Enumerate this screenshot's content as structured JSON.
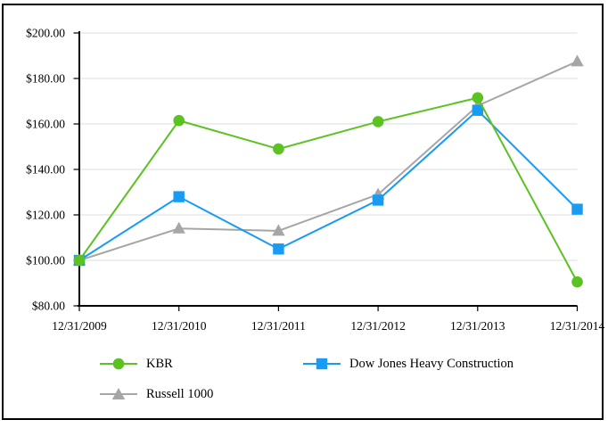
{
  "chart_data": {
    "type": "line",
    "title": "",
    "xlabel": "",
    "ylabel": "",
    "x_labels": [
      "12/31/2009",
      "12/31/2010",
      "12/31/2011",
      "12/31/2012",
      "12/31/2013",
      "12/31/2014"
    ],
    "y_tick_values": [
      80,
      100,
      120,
      140,
      160,
      180,
      200
    ],
    "y_tick_labels": [
      "$80.00",
      "$100.00",
      "$120.00",
      "$140.00",
      "$160.00",
      "$180.00",
      "$200.00"
    ],
    "ylim": [
      80,
      200
    ],
    "grid": "horizontal",
    "legend_position": "bottom",
    "series": [
      {
        "name": "KBR",
        "marker": "circle",
        "color": "#5BC221",
        "values": [
          100.0,
          161.5,
          149.0,
          161.0,
          171.5,
          90.5
        ]
      },
      {
        "name": "Dow Jones Heavy Construction",
        "marker": "square",
        "color": "#189BF2",
        "values": [
          100.0,
          128.0,
          105.0,
          126.5,
          166.0,
          122.5
        ]
      },
      {
        "name": "Russell 1000",
        "marker": "triangle",
        "color": "#A6A6A6",
        "values": [
          100.0,
          114.0,
          113.0,
          129.0,
          168.0,
          187.5
        ]
      }
    ],
    "colors": {
      "grid": "#DCDCDC",
      "axis": "#000000",
      "text": "#000000",
      "border": "#000000"
    }
  }
}
